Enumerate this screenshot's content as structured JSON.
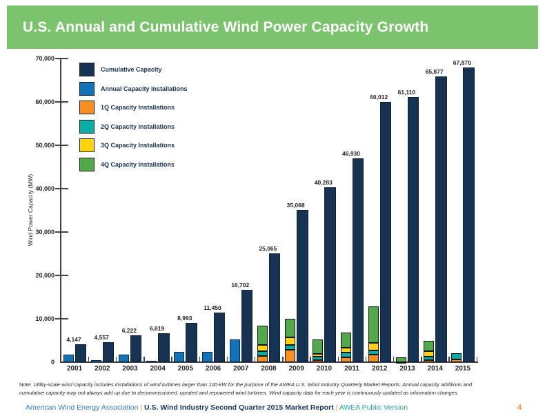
{
  "header": {
    "title": "U.S. Annual and Cumulative Wind Power Capacity Growth"
  },
  "colors": {
    "header_bg": "#7CC36E",
    "cumulative": "#163354",
    "annual": "#1174B8",
    "q1": "#F68E20",
    "q2": "#0AAEA6",
    "q3": "#FFD40E",
    "q4": "#52A949",
    "axis": "#414042",
    "text": "#231F20",
    "footer_blue": "#3A7DBF",
    "footer_navy": "#1B3A60",
    "footer_teal": "#29A8A2",
    "footer_orange": "#F7941E"
  },
  "legend": {
    "items": [
      {
        "label": "Cumulative Capacity",
        "color_key": "cumulative"
      },
      {
        "label": "Annual Capacity Installations",
        "color_key": "annual"
      },
      {
        "label": "1Q Capacity Installations",
        "color_key": "q1"
      },
      {
        "label": "2Q Capacity Installations",
        "color_key": "q2"
      },
      {
        "label": "3Q Capacity Installations",
        "color_key": "q3"
      },
      {
        "label": "4Q Capacity Installations",
        "color_key": "q4"
      }
    ]
  },
  "chart_data": {
    "type": "bar",
    "title": "U.S. Annual and Cumulative Wind Power Capacity Growth",
    "xlabel": "",
    "ylabel": "Wind Power Capacity (MW)",
    "ylim": [
      0,
      70000
    ],
    "ytick_step": 10000,
    "ytick_labels": [
      "0",
      "10,000",
      "20,000",
      "30,000",
      "40,000",
      "50,000",
      "60,000",
      "70,000"
    ],
    "grid": false,
    "legend_position": "upper left",
    "categories": [
      "2001",
      "2002",
      "2003",
      "2004",
      "2005",
      "2006",
      "2007",
      "2008",
      "2009",
      "2010",
      "2011",
      "2012",
      "2013",
      "2014",
      "2015"
    ],
    "series": [
      {
        "name": "Cumulative Capacity",
        "values": [
          4147,
          4557,
          6222,
          6619,
          8993,
          11450,
          16702,
          25065,
          35068,
          40283,
          46930,
          60012,
          61110,
          65877,
          67870
        ],
        "labels": [
          "4,147",
          "4,557",
          "6,222",
          "6,619",
          "8,993",
          "11,450",
          "16,702",
          "25,065",
          "35,068",
          "40,283",
          "46,930",
          "60,012",
          "61,110",
          "65,877",
          "67,870"
        ]
      },
      {
        "name": "Annual Capacity Installations",
        "values": [
          1697,
          446,
          1670,
          389,
          2374,
          2454,
          5249,
          null,
          null,
          null,
          null,
          null,
          null,
          null,
          null
        ]
      },
      {
        "name": "1Q Capacity Installations",
        "values": [
          null,
          null,
          null,
          null,
          null,
          null,
          null,
          1400,
          2826,
          539,
          1118,
          1695,
          2,
          433,
          603
        ]
      },
      {
        "name": "2Q Capacity Installations",
        "values": [
          null,
          null,
          null,
          null,
          null,
          null,
          null,
          1193,
          1210,
          700,
          1033,
          976,
          2,
          835,
          1391
        ]
      },
      {
        "name": "3Q Capacity Installations",
        "values": [
          null,
          null,
          null,
          null,
          null,
          null,
          null,
          1389,
          1649,
          670,
          1204,
          1833,
          68,
          1254,
          null
        ]
      },
      {
        "name": "4Q Capacity Installations",
        "values": [
          null,
          null,
          null,
          null,
          null,
          null,
          null,
          4376,
          4325,
          3307,
          3444,
          8385,
          1015,
          2332,
          null
        ]
      }
    ]
  },
  "note": {
    "label": "Note:",
    "line1": "Utility-scale wind capacity includes installations of wind turbines larger than 100-kW for the purpose of the AWEA U.S. Wind Industry Quarterly Market Reports. Annual capacity additions and",
    "line2": "cumulative capacity may not always add up due to decommissioned, uprated and repowered wind turbines. Wind capacity data for each year is continuously updated as information changes."
  },
  "footer": {
    "org": "American Wind Energy Association",
    "separator": "|",
    "report": "U.S. Wind Industry Second Quarter 2015 Market Report",
    "version": "AWEA Public Version",
    "page": "4"
  }
}
